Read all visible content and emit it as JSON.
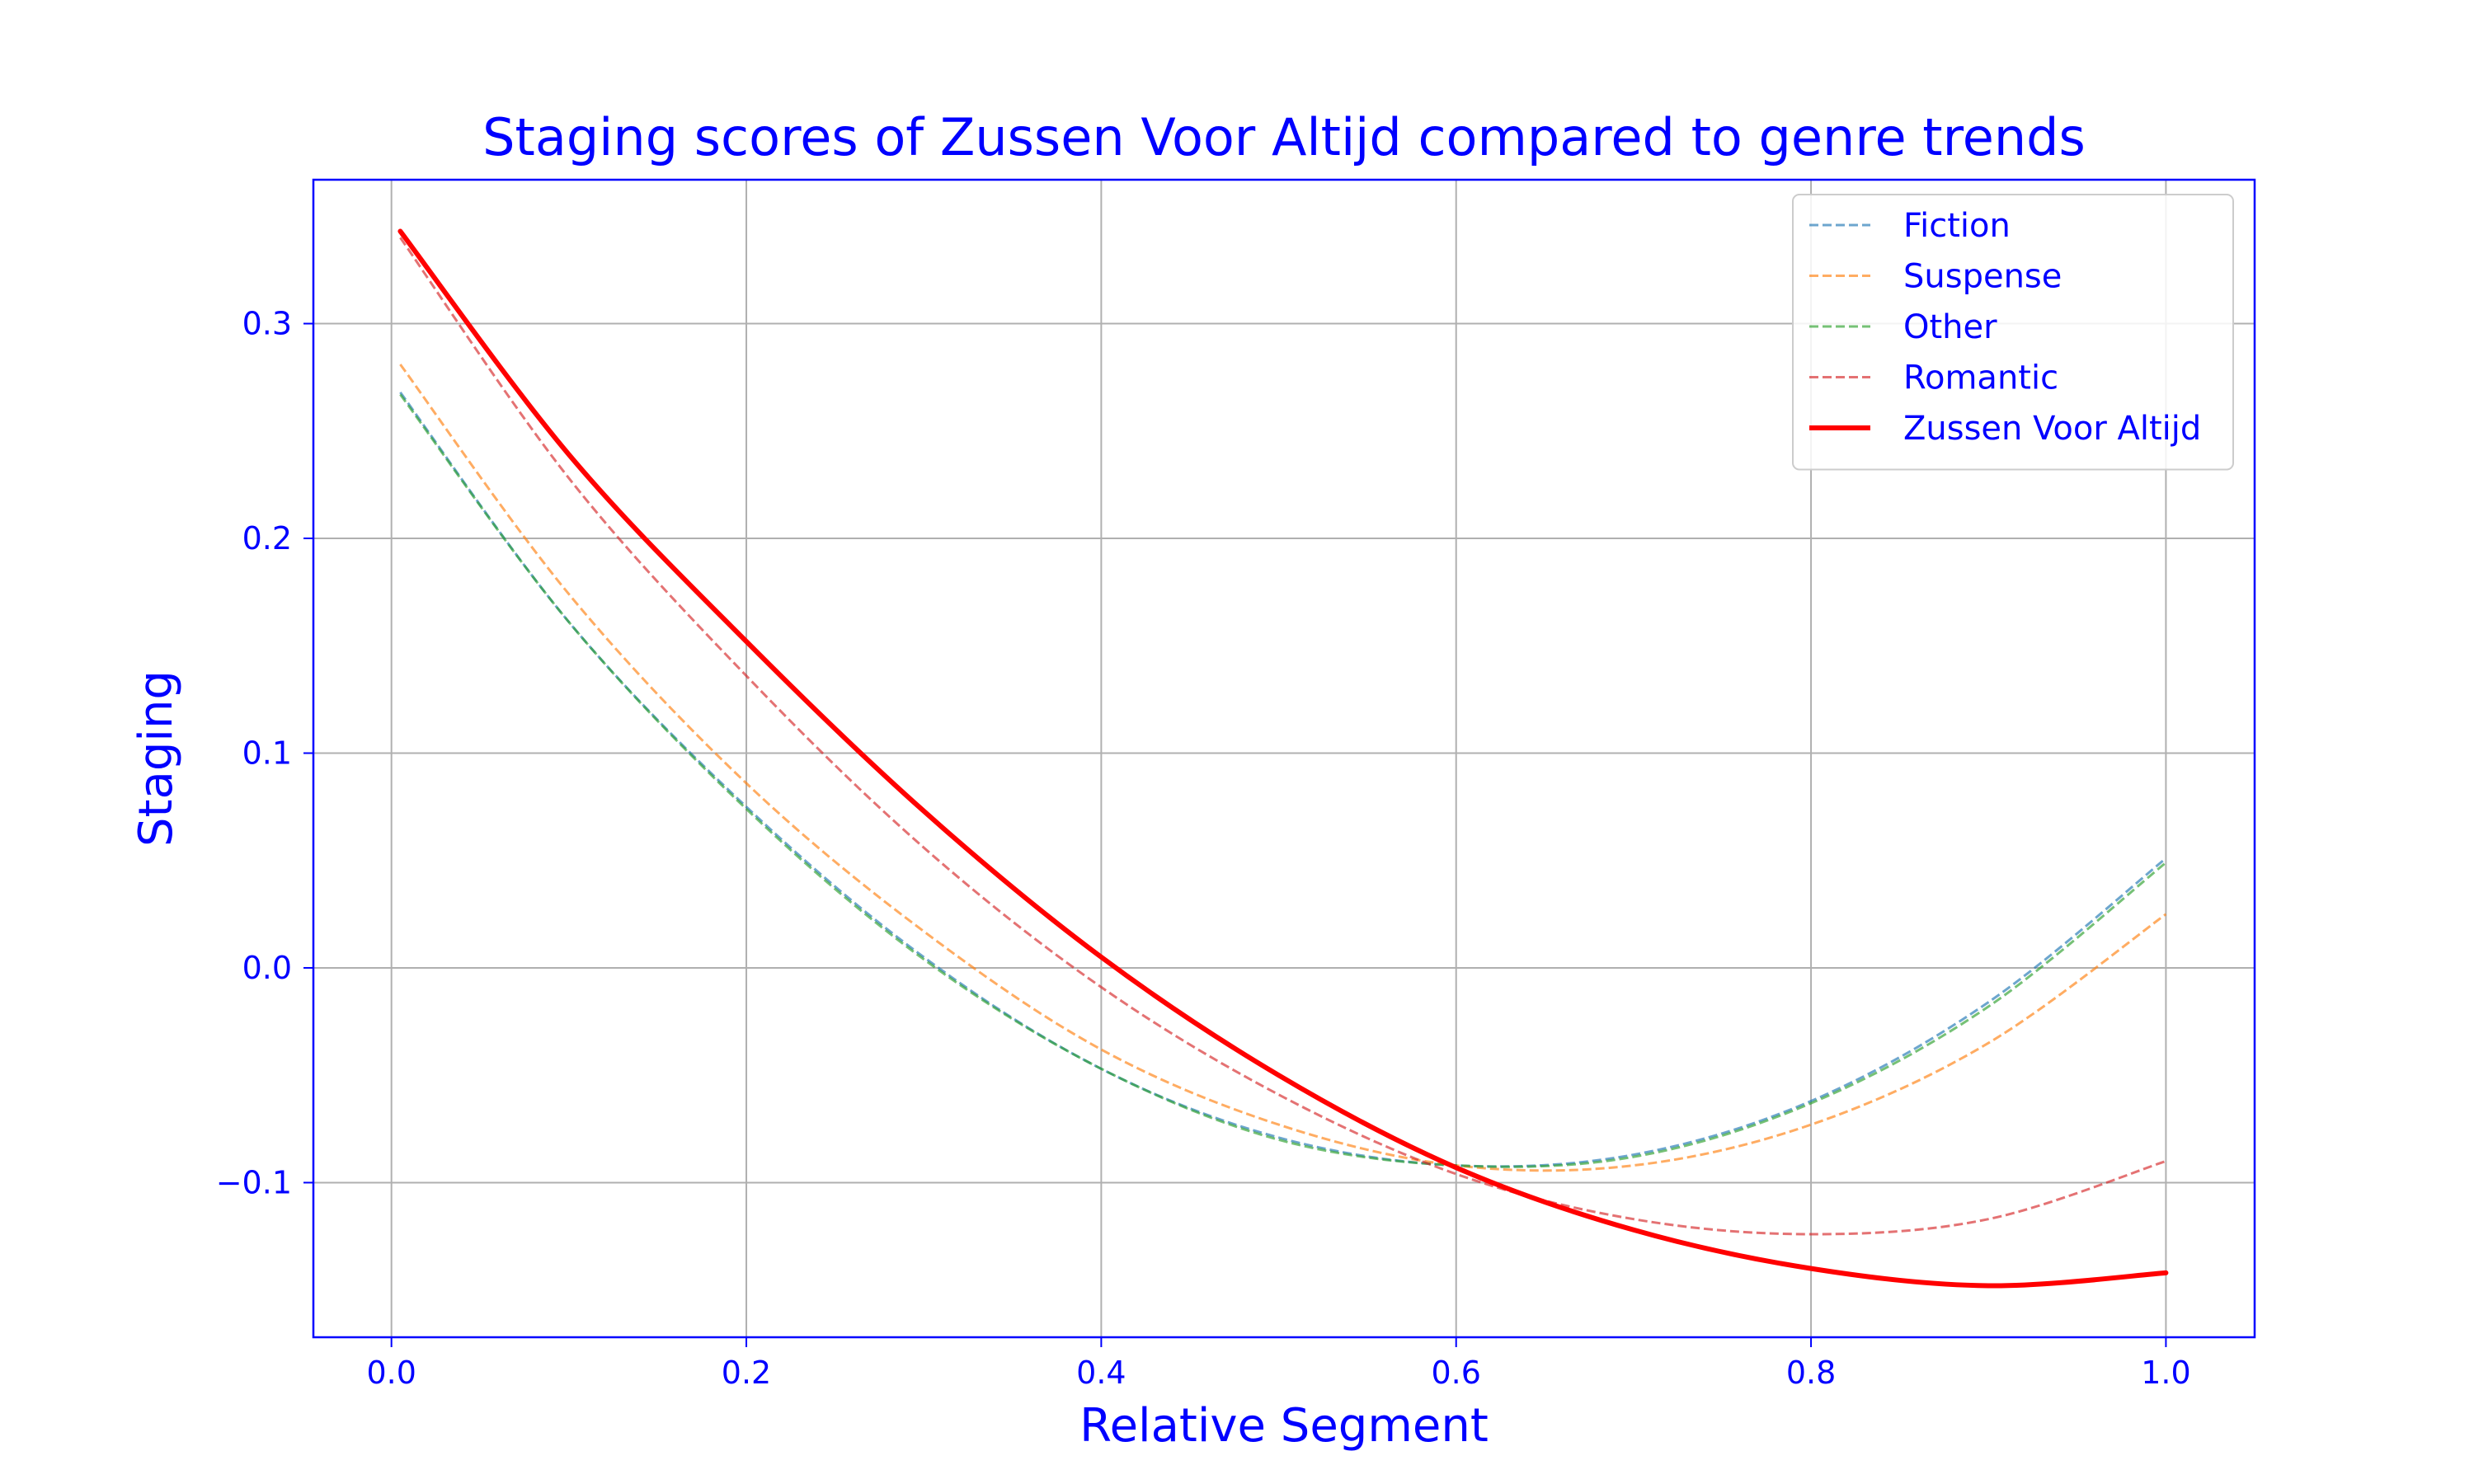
{
  "chart_data": {
    "type": "line",
    "title": "Staging scores of Zussen Voor Altijd compared to genre trends",
    "xlabel": "Relative Segment",
    "ylabel": "Staging",
    "xlim": [
      -0.044,
      1.05
    ],
    "ylim": [
      -0.172,
      0.367
    ],
    "xticks": [
      0.0,
      0.2,
      0.4,
      0.6,
      0.8,
      1.0
    ],
    "xtick_labels": [
      "0.0",
      "0.2",
      "0.4",
      "0.6",
      "0.8",
      "1.0"
    ],
    "yticks": [
      -0.1,
      0.0,
      0.1,
      0.2,
      0.3
    ],
    "ytick_labels": [
      "−0.1",
      "0.0",
      "0.1",
      "0.2",
      "0.3"
    ],
    "grid": true,
    "legend_position": "top-right",
    "text_color": "#0000ff",
    "axes_color": "#0000ff",
    "grid_color": "#b0b0b0",
    "series": [
      {
        "name": "Fiction",
        "style": "dashed",
        "color": "#1f77b4",
        "x": [
          0.005,
          0.1,
          0.2,
          0.3,
          0.4,
          0.5,
          0.6,
          0.7,
          0.8,
          0.9,
          1.0
        ],
        "y": [
          0.268,
          0.161,
          0.075,
          0.005,
          -0.047,
          -0.079,
          -0.092,
          -0.087,
          -0.062,
          -0.016,
          0.051
        ]
      },
      {
        "name": "Suspense",
        "style": "dashed",
        "color": "#ff7f0e",
        "x": [
          0.005,
          0.1,
          0.2,
          0.3,
          0.4,
          0.5,
          0.6,
          0.7,
          0.8,
          0.9,
          1.0
        ],
        "y": [
          0.281,
          0.174,
          0.086,
          0.017,
          -0.038,
          -0.073,
          -0.092,
          -0.092,
          -0.073,
          -0.035,
          0.025
        ]
      },
      {
        "name": "Other",
        "style": "dashed",
        "color": "#2ca02c",
        "x": [
          0.005,
          0.1,
          0.2,
          0.3,
          0.4,
          0.5,
          0.6,
          0.7,
          0.8,
          0.9,
          1.0
        ],
        "y": [
          0.267,
          0.161,
          0.074,
          0.004,
          -0.047,
          -0.08,
          -0.092,
          -0.088,
          -0.063,
          -0.018,
          0.049
        ]
      },
      {
        "name": "Romantic",
        "style": "dashed",
        "color": "#d62728",
        "x": [
          0.005,
          0.1,
          0.2,
          0.3,
          0.4,
          0.5,
          0.6,
          0.7,
          0.8,
          0.9,
          1.0
        ],
        "y": [
          0.34,
          0.228,
          0.136,
          0.056,
          -0.009,
          -0.059,
          -0.096,
          -0.117,
          -0.124,
          -0.117,
          -0.09
        ]
      },
      {
        "name": "Zussen Voor Altijd",
        "style": "solid",
        "color": "#ff0000",
        "x": [
          0.005,
          0.1,
          0.2,
          0.3,
          0.4,
          0.5,
          0.6,
          0.7,
          0.8,
          0.9,
          1.0
        ],
        "y": [
          0.343,
          0.239,
          0.152,
          0.073,
          0.005,
          -0.05,
          -0.093,
          -0.122,
          -0.14,
          -0.148,
          -0.142
        ]
      }
    ]
  }
}
